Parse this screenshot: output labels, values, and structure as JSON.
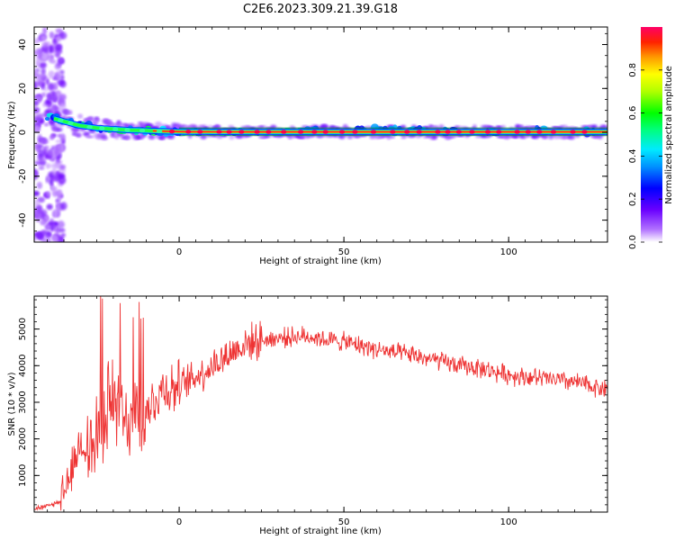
{
  "title": "C2E6.2023.309.21.39.G18",
  "chart_data": [
    {
      "type": "heatmap",
      "xlabel": "Height of straight line (km)",
      "ylabel": "Frequency (Hz)",
      "xlim": [
        -44,
        130
      ],
      "ylim": [
        -50,
        48
      ],
      "xticks": [
        0,
        50,
        100
      ],
      "yticks": [
        -40,
        -20,
        0,
        20,
        40
      ],
      "colorbar": {
        "label": "Normalized spectral amplitude",
        "range": [
          0,
          1
        ],
        "ticks": [
          0.0,
          0.2,
          0.4,
          0.6,
          0.8
        ],
        "tick_labels": [
          "0.0",
          "0.2",
          "0.4",
          "0.6",
          "0.8"
        ]
      },
      "ridge": {
        "description_points_height_km": [
          -42,
          -35,
          -30,
          -25,
          -20,
          -15,
          -10,
          -5,
          0,
          20,
          50,
          80,
          110,
          130
        ],
        "frequency_hz": [
          8,
          5,
          3,
          2,
          1.5,
          1,
          0.8,
          0.5,
          0.3,
          0.2,
          0.2,
          0.2,
          0.2,
          0.2
        ]
      }
    },
    {
      "type": "line",
      "xlabel": "Height of straight line (km)",
      "ylabel": "SNR (10 * v/v)",
      "xlim": [
        -44,
        130
      ],
      "ylim": [
        0,
        5900
      ],
      "xticks": [
        0,
        50,
        100
      ],
      "yticks": [
        1000,
        2000,
        3000,
        4000,
        5000
      ],
      "series": [
        {
          "color": "#ee3333",
          "x": [
            -44,
            -40,
            -36,
            -34,
            -32,
            -30,
            -28,
            -26,
            -24,
            -22,
            -20,
            -18,
            -16,
            -14,
            -12,
            -10,
            -8,
            -5,
            0,
            5,
            10,
            15,
            20,
            25,
            30,
            35,
            40,
            45,
            50,
            55,
            60,
            65,
            70,
            75,
            80,
            85,
            90,
            95,
            100,
            105,
            110,
            115,
            120,
            125,
            130
          ],
          "y": [
            100,
            150,
            300,
            700,
            1300,
            1900,
            1800,
            1700,
            2100,
            2800,
            3200,
            2600,
            2400,
            2800,
            2500,
            2600,
            3000,
            3400,
            3400,
            3700,
            4000,
            4300,
            4600,
            4700,
            4750,
            4800,
            4800,
            4700,
            4650,
            4550,
            4450,
            4350,
            4300,
            4200,
            4100,
            4000,
            3950,
            3850,
            3750,
            3700,
            3650,
            3600,
            3550,
            3450,
            3350
          ]
        }
      ]
    }
  ]
}
